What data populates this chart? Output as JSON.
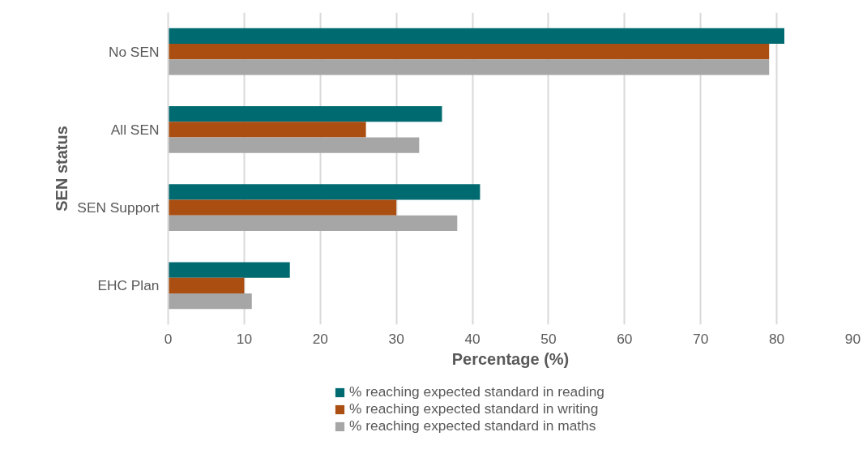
{
  "chart_data": {
    "type": "bar",
    "orientation": "horizontal",
    "xlabel": "Percentage (%)",
    "ylabel": "SEN status",
    "categories": [
      "No SEN",
      "All SEN",
      "SEN Support",
      "EHC Plan"
    ],
    "series": [
      {
        "name": "% reaching expected standard in reading",
        "color": "#006a71",
        "values": [
          81,
          36,
          41,
          16
        ]
      },
      {
        "name": "% reaching expected standard in writing",
        "color": "#aa4e12",
        "values": [
          79,
          26,
          30,
          10
        ]
      },
      {
        "name": "% reaching expected standard in maths",
        "color": "#a6a6a6",
        "values": [
          79,
          33,
          38,
          11
        ]
      }
    ],
    "xlim": [
      0,
      90
    ],
    "xticks": [
      0,
      10,
      20,
      30,
      40,
      50,
      60,
      70,
      80,
      90
    ],
    "grid": "x",
    "legend": "bottom"
  }
}
